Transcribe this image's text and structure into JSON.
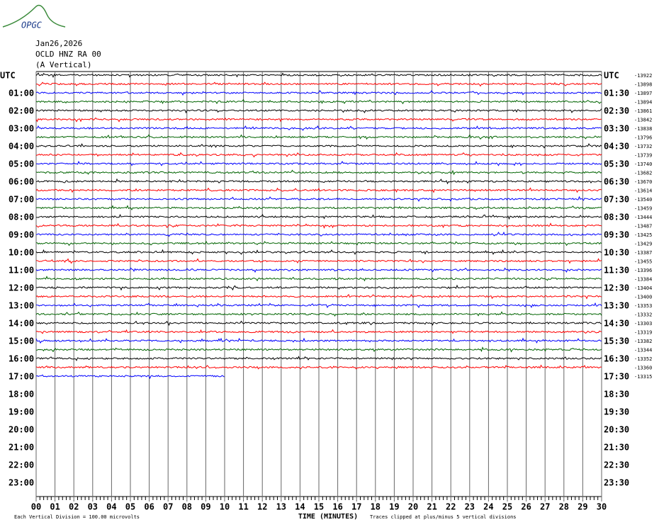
{
  "header": {
    "logo": "OPGC",
    "date": "Jan26,2026",
    "station": "OCLD HNZ RA 00",
    "component": "(A Vertical)"
  },
  "left_labels": [
    "UTC",
    "01:00",
    "02:00",
    "03:00",
    "04:00",
    "05:00",
    "06:00",
    "07:00",
    "08:00",
    "09:00",
    "10:00",
    "11:00",
    "12:00",
    "13:00",
    "14:00",
    "15:00",
    "16:00",
    "17:00",
    "18:00",
    "19:00",
    "20:00",
    "21:00",
    "22:00",
    "23:00"
  ],
  "right_labels": [
    "UTC",
    "01:30",
    "02:30",
    "03:30",
    "04:30",
    "05:30",
    "06:30",
    "07:30",
    "08:30",
    "09:30",
    "10:30",
    "11:30",
    "12:30",
    "13:30",
    "14:30",
    "15:30",
    "16:30",
    "17:30",
    "18:30",
    "19:30",
    "20:30",
    "21:30",
    "22:30",
    "23:30"
  ],
  "offsets": [
    "-13922",
    "-13898",
    "-13897",
    "-13894",
    "-13861",
    "-13842",
    "-13838",
    "-13796",
    "-13732",
    "-13739",
    "-13740",
    "-13682",
    "-13670",
    "-13614",
    "-13540",
    "-13459",
    "-13444",
    "-13487",
    "-13425",
    "-13429",
    "-13387",
    "-13455",
    "-13396",
    "-13384",
    "-13404",
    "-13400",
    "-13353",
    "-13332",
    "-13303",
    "-13319",
    "-13382",
    "-13344",
    "-13352",
    "-13360",
    "-13315"
  ],
  "trace_colors": [
    "#000000",
    "#ff0000",
    "#0000ff",
    "#006400"
  ],
  "last_trace_end_minute": 10,
  "x_ticks": [
    "00",
    "01",
    "02",
    "03",
    "04",
    "05",
    "06",
    "07",
    "08",
    "09",
    "10",
    "11",
    "12",
    "13",
    "14",
    "15",
    "16",
    "17",
    "18",
    "19",
    "20",
    "21",
    "22",
    "23",
    "24",
    "25",
    "26",
    "27",
    "28",
    "29",
    "30"
  ],
  "x_label": "TIME (MINUTES)",
  "footer_left": "Each Vertical Division =  100.00 microvolts",
  "footer_right": "Traces clipped at plus/minus 5 vertical divisions"
}
